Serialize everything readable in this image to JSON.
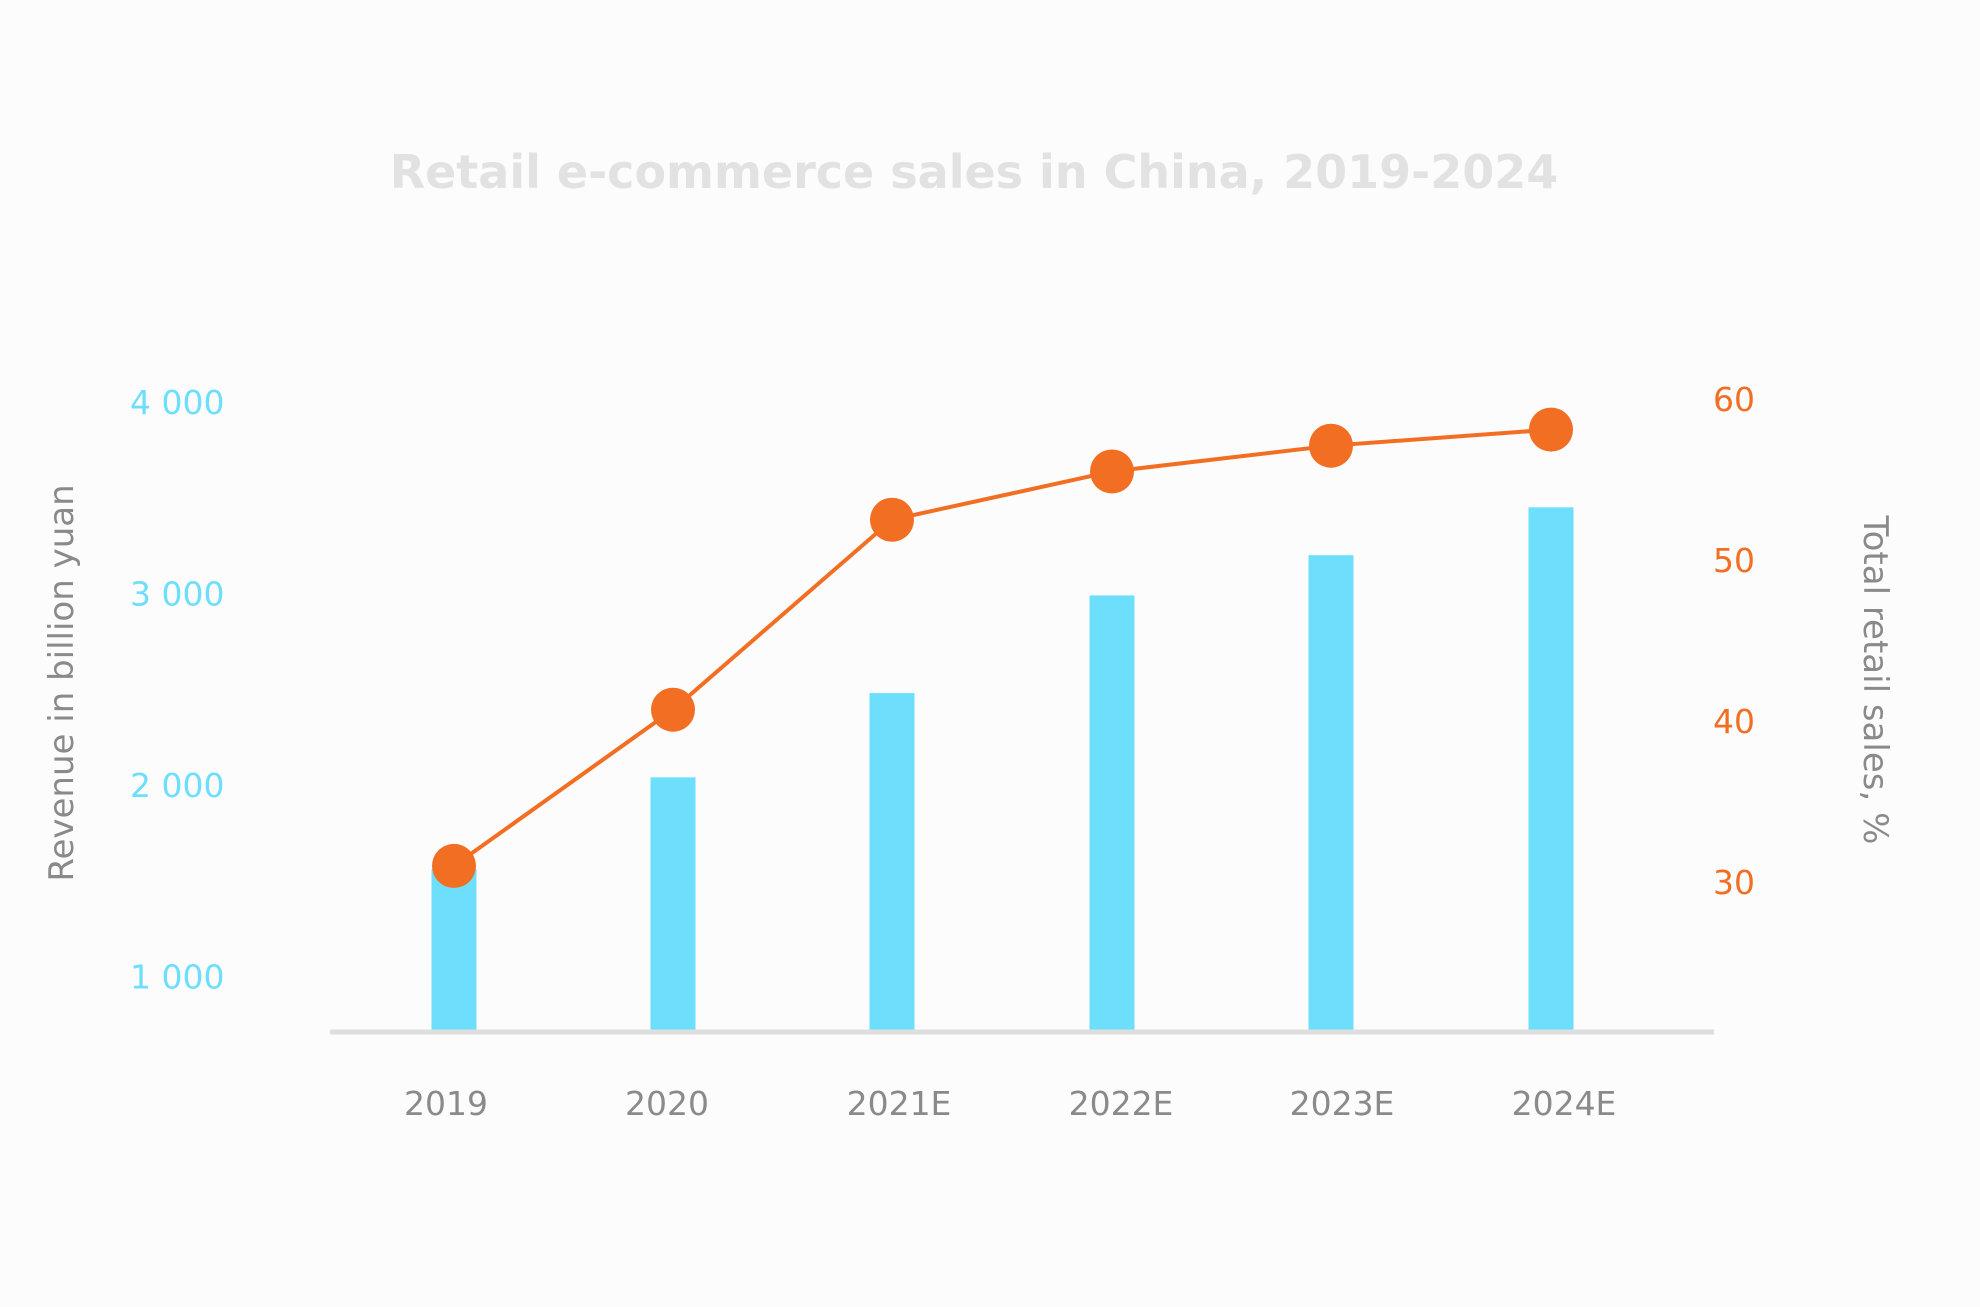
{
  "chart_data": {
    "type": "bar",
    "title": "Retail e-commerce sales in China, 2019-2024",
    "categories": [
      "2019",
      "2020",
      "2021E",
      "2022E",
      "2023E",
      "2024E"
    ],
    "series": [
      {
        "type": "bar",
        "axis": "left",
        "color": "#6ddffd",
        "values": [
          1560,
          2040,
          2480,
          2990,
          3200,
          3450
        ]
      },
      {
        "type": "line",
        "axis": "right",
        "color": "#f26e22",
        "values": [
          31.0,
          40.7,
          52.5,
          55.5,
          57.1,
          58.1
        ]
      }
    ],
    "y_left": {
      "label": "Revenue in billion yuan",
      "ticks": [
        "1 000",
        "2 000",
        "3 000",
        "4 000"
      ],
      "tick_values": [
        1000,
        2000,
        3000,
        4000
      ],
      "range": [
        700,
        4000
      ],
      "color": "#6ddffd"
    },
    "y_right": {
      "label": "Total retail sales, %",
      "ticks": [
        "30",
        "40",
        "50",
        "60"
      ],
      "tick_values": [
        30,
        40,
        50,
        60
      ],
      "range": [
        21,
        60
      ],
      "color": "#f26e22"
    },
    "grid": false,
    "legend": "none"
  }
}
